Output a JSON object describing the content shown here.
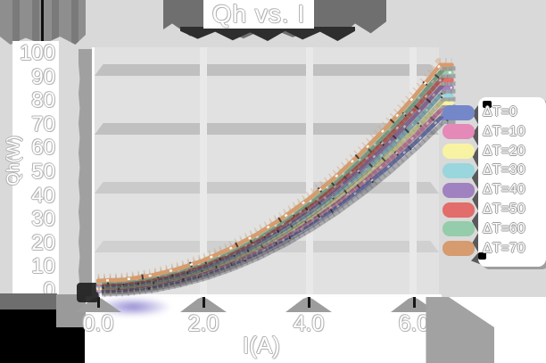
{
  "title": "Qh vs. I",
  "axes": {
    "x_label": "I(A)",
    "y_label": "Qh(W)",
    "x_ticks": [
      {
        "label": "0.0",
        "value": 0
      },
      {
        "label": "2.0",
        "value": 2
      },
      {
        "label": "4.0",
        "value": 4
      },
      {
        "label": "6.0",
        "value": 6
      }
    ],
    "y_ticks": [
      {
        "label": "100",
        "value": 100
      },
      {
        "label": "90",
        "value": 90
      },
      {
        "label": "80",
        "value": 80
      },
      {
        "label": "70",
        "value": 70
      },
      {
        "label": "60",
        "value": 60
      },
      {
        "label": "50",
        "value": 50
      },
      {
        "label": "40",
        "value": 40
      },
      {
        "label": "30",
        "value": 30
      },
      {
        "label": "20",
        "value": 20
      },
      {
        "label": "10",
        "value": 10
      },
      {
        "label": "0",
        "value": 0
      }
    ]
  },
  "chart_data": {
    "type": "line",
    "title": "Qh vs. I",
    "xlabel": "I(A)",
    "ylabel": "Qh(W)",
    "xlim": [
      0,
      6.8
    ],
    "ylim": [
      0,
      100
    ],
    "grid": true,
    "legend_position": "right",
    "x": [
      0,
      0.5,
      1.0,
      1.5,
      2.0,
      2.5,
      3.0,
      3.5,
      4.0,
      4.5,
      5.0,
      5.5,
      6.0,
      6.5
    ],
    "series": [
      {
        "name": "ΔT=0",
        "color": "#7487c9",
        "values": [
          0.0,
          0.4,
          1.7,
          3.9,
          6.9,
          10.8,
          15.5,
          21.1,
          27.5,
          34.8,
          43.0,
          52.0,
          61.9,
          72.7
        ]
      },
      {
        "name": "ΔT=10",
        "color": "#e489b8",
        "values": [
          0.6,
          1.1,
          2.4,
          4.6,
          7.7,
          11.7,
          16.6,
          22.4,
          29.1,
          36.7,
          45.2,
          54.5,
          64.8,
          75.9
        ]
      },
      {
        "name": "ΔT=20",
        "color": "#f8f3a2",
        "values": [
          1.2,
          1.7,
          3.0,
          5.4,
          8.6,
          12.7,
          17.8,
          23.8,
          30.7,
          38.5,
          47.3,
          57.0,
          67.6,
          79.1
        ]
      },
      {
        "name": "ΔT=30",
        "color": "#99d6de",
        "values": [
          1.8,
          2.3,
          3.7,
          6.1,
          9.4,
          13.7,
          19.0,
          25.2,
          32.3,
          40.4,
          49.5,
          59.5,
          70.4,
          82.3
        ]
      },
      {
        "name": "ΔT=40",
        "color": "#a182c1",
        "values": [
          2.4,
          2.9,
          4.4,
          6.8,
          10.3,
          14.7,
          20.1,
          26.5,
          33.9,
          42.3,
          51.6,
          61.9,
          73.3,
          85.6
        ]
      },
      {
        "name": "ΔT=50",
        "color": "#e26d6a",
        "values": [
          3.0,
          3.5,
          5.0,
          7.6,
          11.1,
          15.7,
          21.3,
          27.9,
          35.5,
          44.1,
          53.8,
          64.4,
          76.1,
          88.8
        ]
      },
      {
        "name": "ΔT=60",
        "color": "#95ccab",
        "values": [
          3.6,
          4.1,
          5.7,
          8.3,
          12.0,
          16.7,
          22.4,
          29.2,
          37.1,
          46.0,
          55.9,
          66.9,
          78.9,
          92.0
        ]
      },
      {
        "name": "ΔT=70",
        "color": "#d69b6e",
        "values": [
          4.2,
          4.7,
          6.4,
          9.1,
          12.8,
          17.7,
          23.6,
          30.6,
          38.7,
          47.8,
          58.1,
          69.4,
          81.7,
          95.2
        ]
      }
    ]
  }
}
